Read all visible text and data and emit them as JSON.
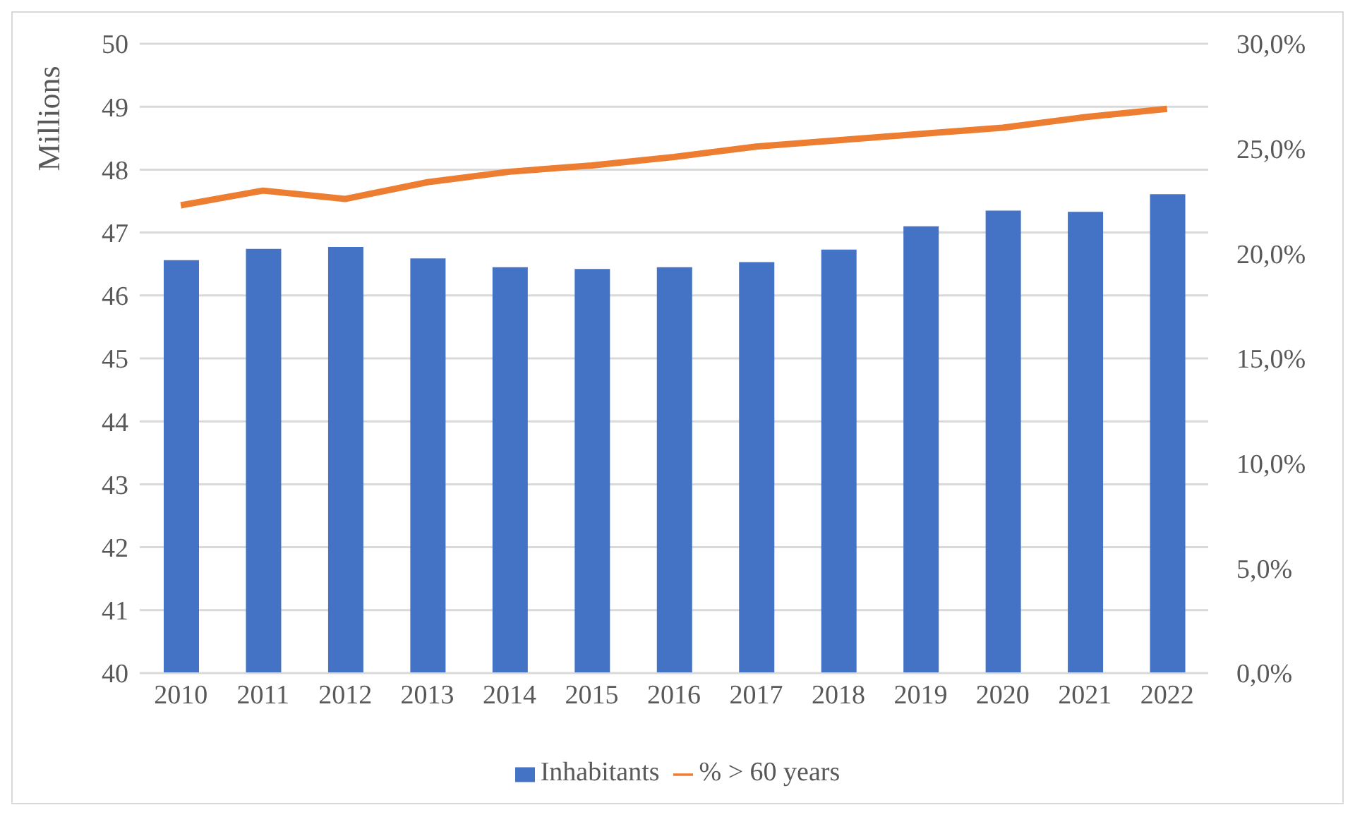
{
  "chart_data": {
    "type": "bar",
    "categories": [
      "2010",
      "2011",
      "2012",
      "2013",
      "2014",
      "2015",
      "2016",
      "2017",
      "2018",
      "2019",
      "2020",
      "2021",
      "2022"
    ],
    "ylabel": "Millions",
    "ylim": [
      40,
      50
    ],
    "yticks": [
      40,
      41,
      42,
      43,
      44,
      45,
      46,
      47,
      48,
      49,
      50
    ],
    "y2lim": [
      0,
      30
    ],
    "y2ticks": [
      {
        "value": 0,
        "label": "0,0%"
      },
      {
        "value": 5,
        "label": "5,0%"
      },
      {
        "value": 10,
        "label": "10,0%"
      },
      {
        "value": 15,
        "label": "15,0%"
      },
      {
        "value": 20,
        "label": "20,0%"
      },
      {
        "value": 25,
        "label": "25,0%"
      },
      {
        "value": 30,
        "label": "30,0%"
      }
    ],
    "grid": "y",
    "legend": "bottom",
    "series": [
      {
        "name": "Inhabitants",
        "color": "#4472c4",
        "values": [
          46.56,
          46.74,
          46.77,
          46.59,
          46.45,
          46.42,
          46.45,
          46.53,
          46.73,
          47.1,
          47.35,
          47.33,
          47.61
        ]
      },
      {
        "name": "% > 60 years",
        "type": "line",
        "axis": "y2",
        "color": "#ed7d31",
        "values": [
          22.3,
          23.0,
          22.6,
          23.4,
          23.9,
          24.2,
          24.6,
          25.1,
          25.4,
          25.7,
          26.0,
          26.5,
          26.9
        ]
      }
    ]
  }
}
